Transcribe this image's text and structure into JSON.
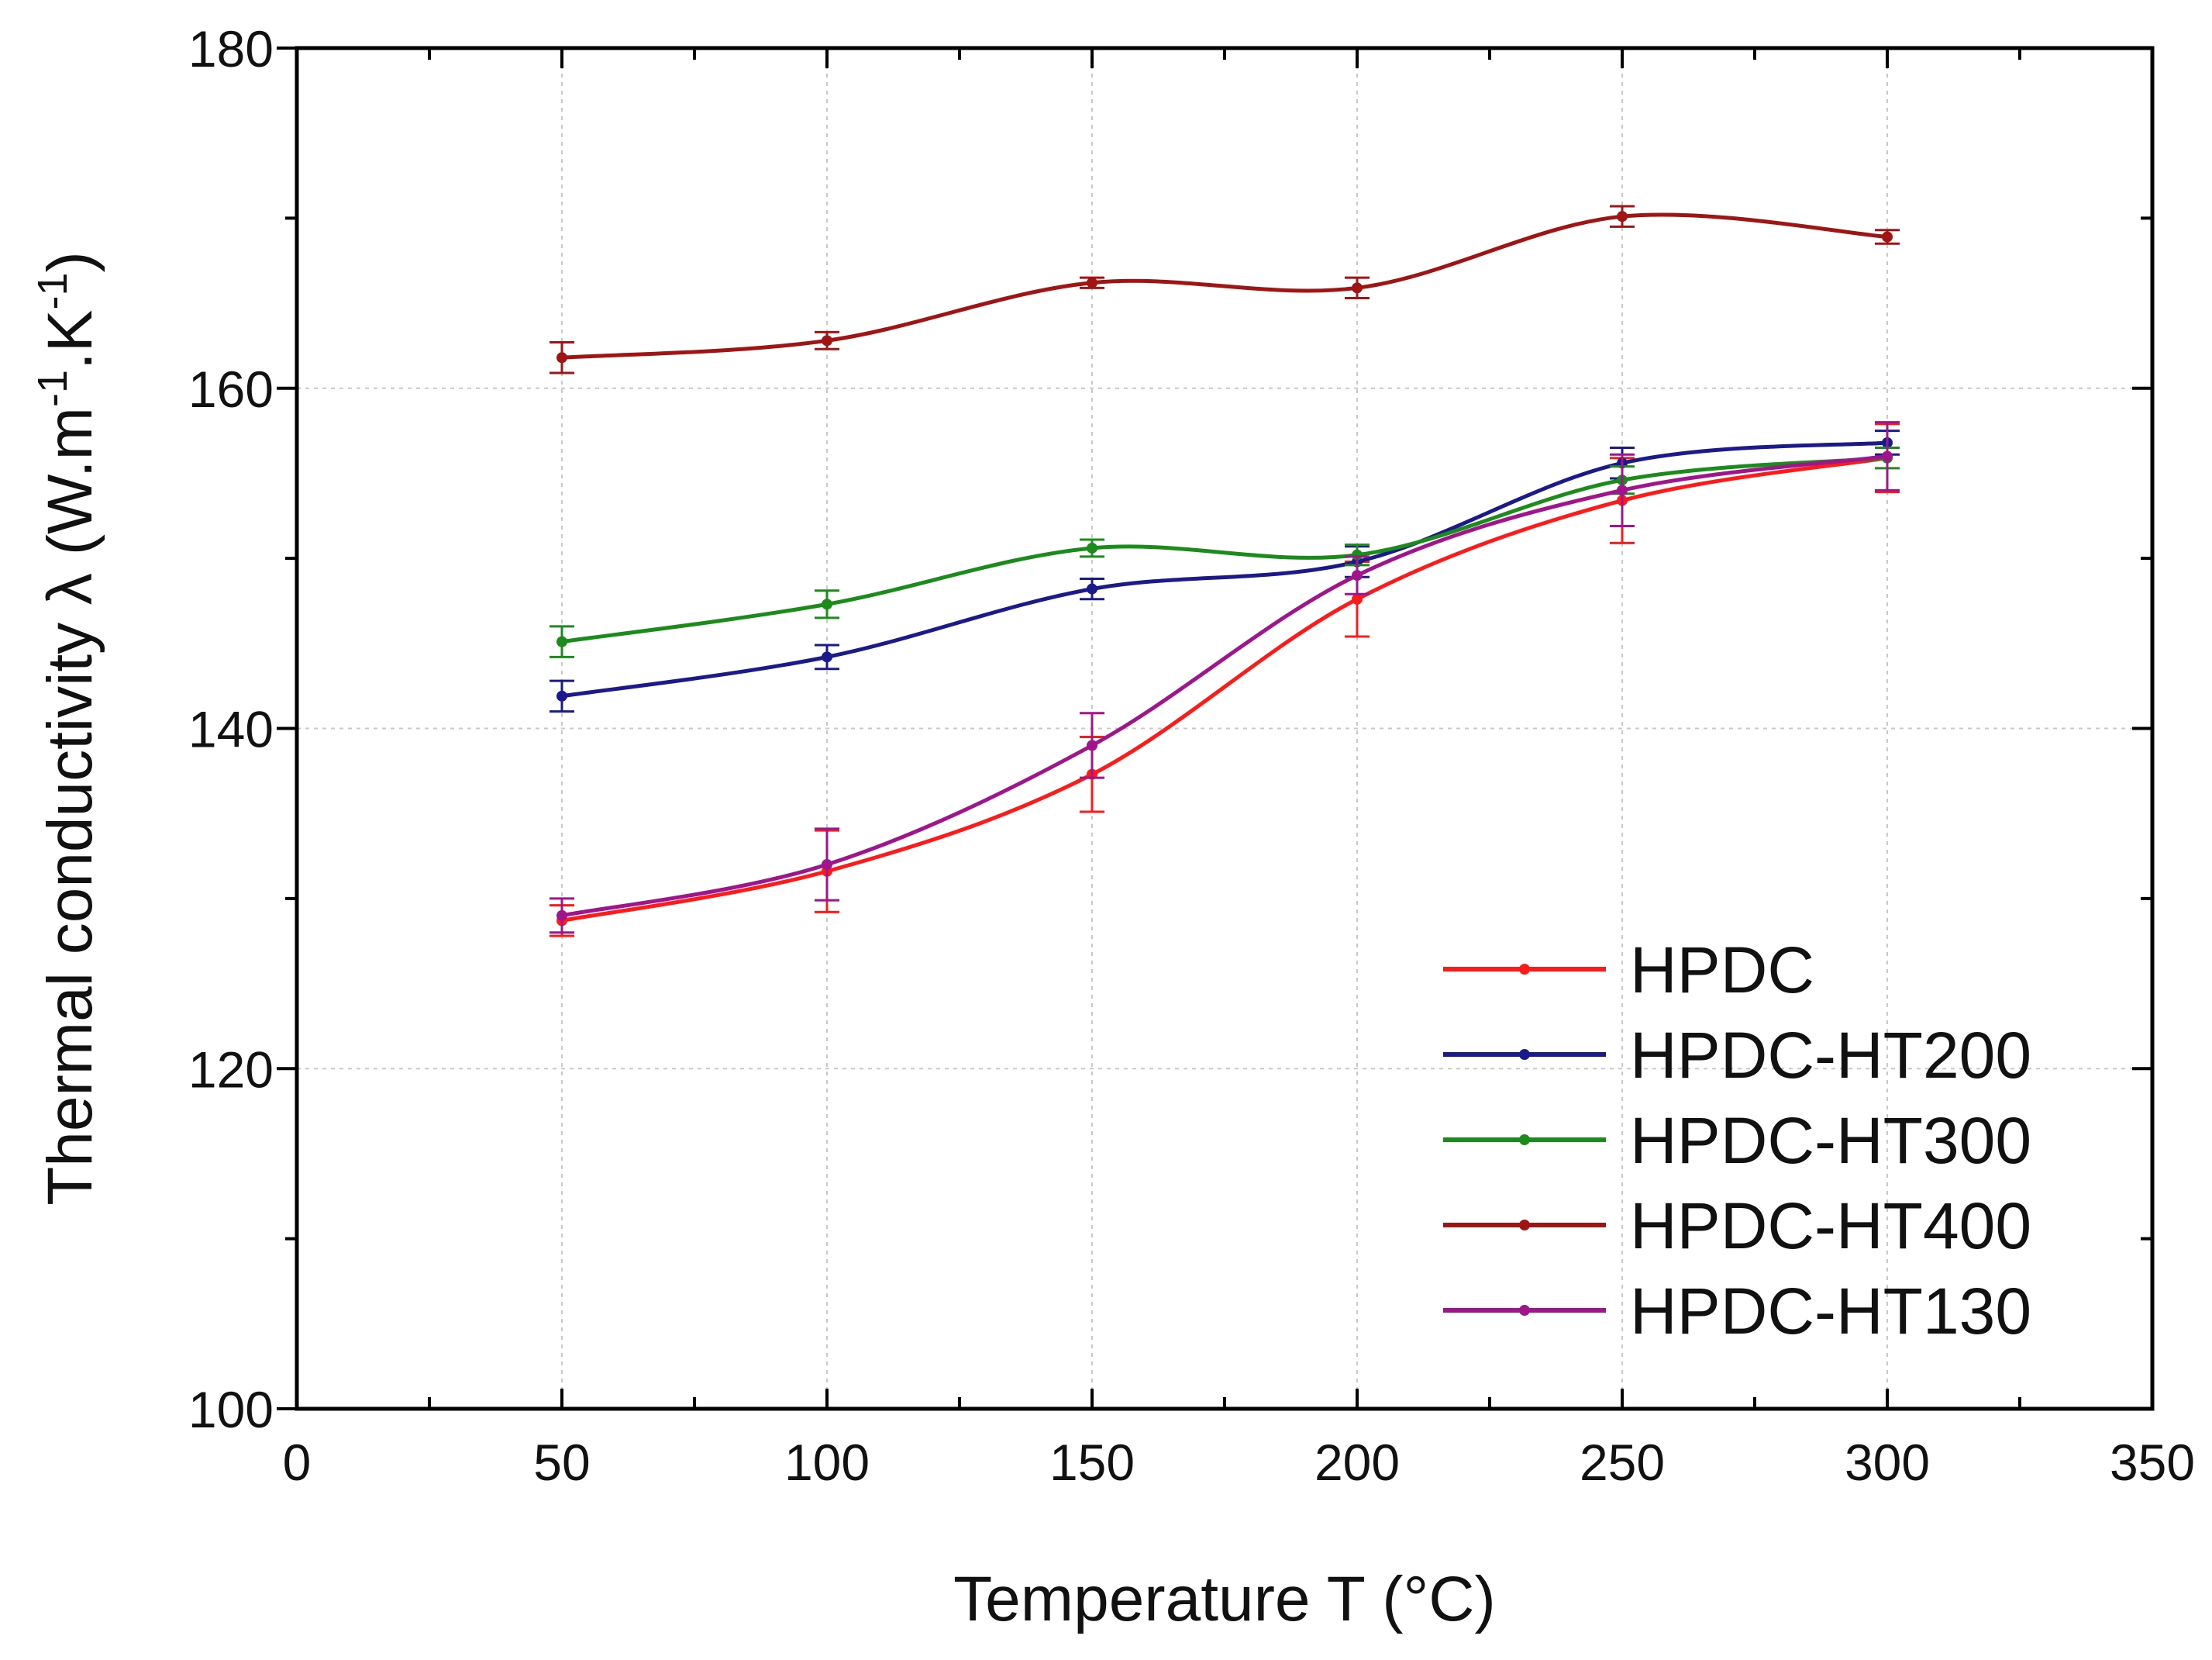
{
  "chart_data": {
    "type": "line",
    "title": "",
    "xlabel": "Temperature T (°C)",
    "ylabel": {
      "prefix": "Thermal conductivity ",
      "symbol": "λ",
      "unit_main": " (W.m",
      "sup1": "-1",
      "unit_mid": ".K",
      "sup2": "-1",
      "unit_end": ")"
    },
    "xlim": [
      0,
      350
    ],
    "ylim": [
      100,
      180
    ],
    "x_ticks": [
      "0",
      "50",
      "100",
      "150",
      "200",
      "250",
      "300",
      "350"
    ],
    "y_ticks": [
      "100",
      "120",
      "140",
      "160",
      "180"
    ],
    "grid": true,
    "legend_position": "bottom-right",
    "x": [
      50,
      100,
      150,
      200,
      250,
      300
    ],
    "series": [
      {
        "name": "HPDC",
        "color": "#ff1a1a",
        "values": [
          128.7,
          131.6,
          137.3,
          147.6,
          153.4,
          155.9
        ],
        "errors": [
          0.9,
          2.4,
          2.2,
          2.2,
          2.5,
          2.0
        ]
      },
      {
        "name": "HPDC-HT200",
        "color": "#1a1a8c",
        "values": [
          141.9,
          144.2,
          148.2,
          149.8,
          155.6,
          156.8
        ],
        "errors": [
          0.9,
          0.7,
          0.6,
          0.9,
          0.9,
          0.7
        ]
      },
      {
        "name": "HPDC-HT300",
        "color": "#1a8c1a",
        "values": [
          145.1,
          147.3,
          150.6,
          150.2,
          154.6,
          155.9
        ],
        "errors": [
          0.9,
          0.8,
          0.5,
          0.6,
          0.8,
          0.6
        ]
      },
      {
        "name": "HPDC-HT400",
        "color": "#a01414",
        "values": [
          161.8,
          162.8,
          166.2,
          165.9,
          170.1,
          168.9
        ],
        "errors": [
          0.9,
          0.5,
          0.3,
          0.6,
          0.6,
          0.4
        ]
      },
      {
        "name": "HPDC-HT130",
        "color": "#a0148c",
        "values": [
          129.0,
          132.0,
          139.0,
          149.0,
          154.0,
          156.0
        ],
        "errors": [
          1.0,
          2.1,
          1.9,
          1.1,
          2.1,
          2.0
        ]
      }
    ]
  }
}
